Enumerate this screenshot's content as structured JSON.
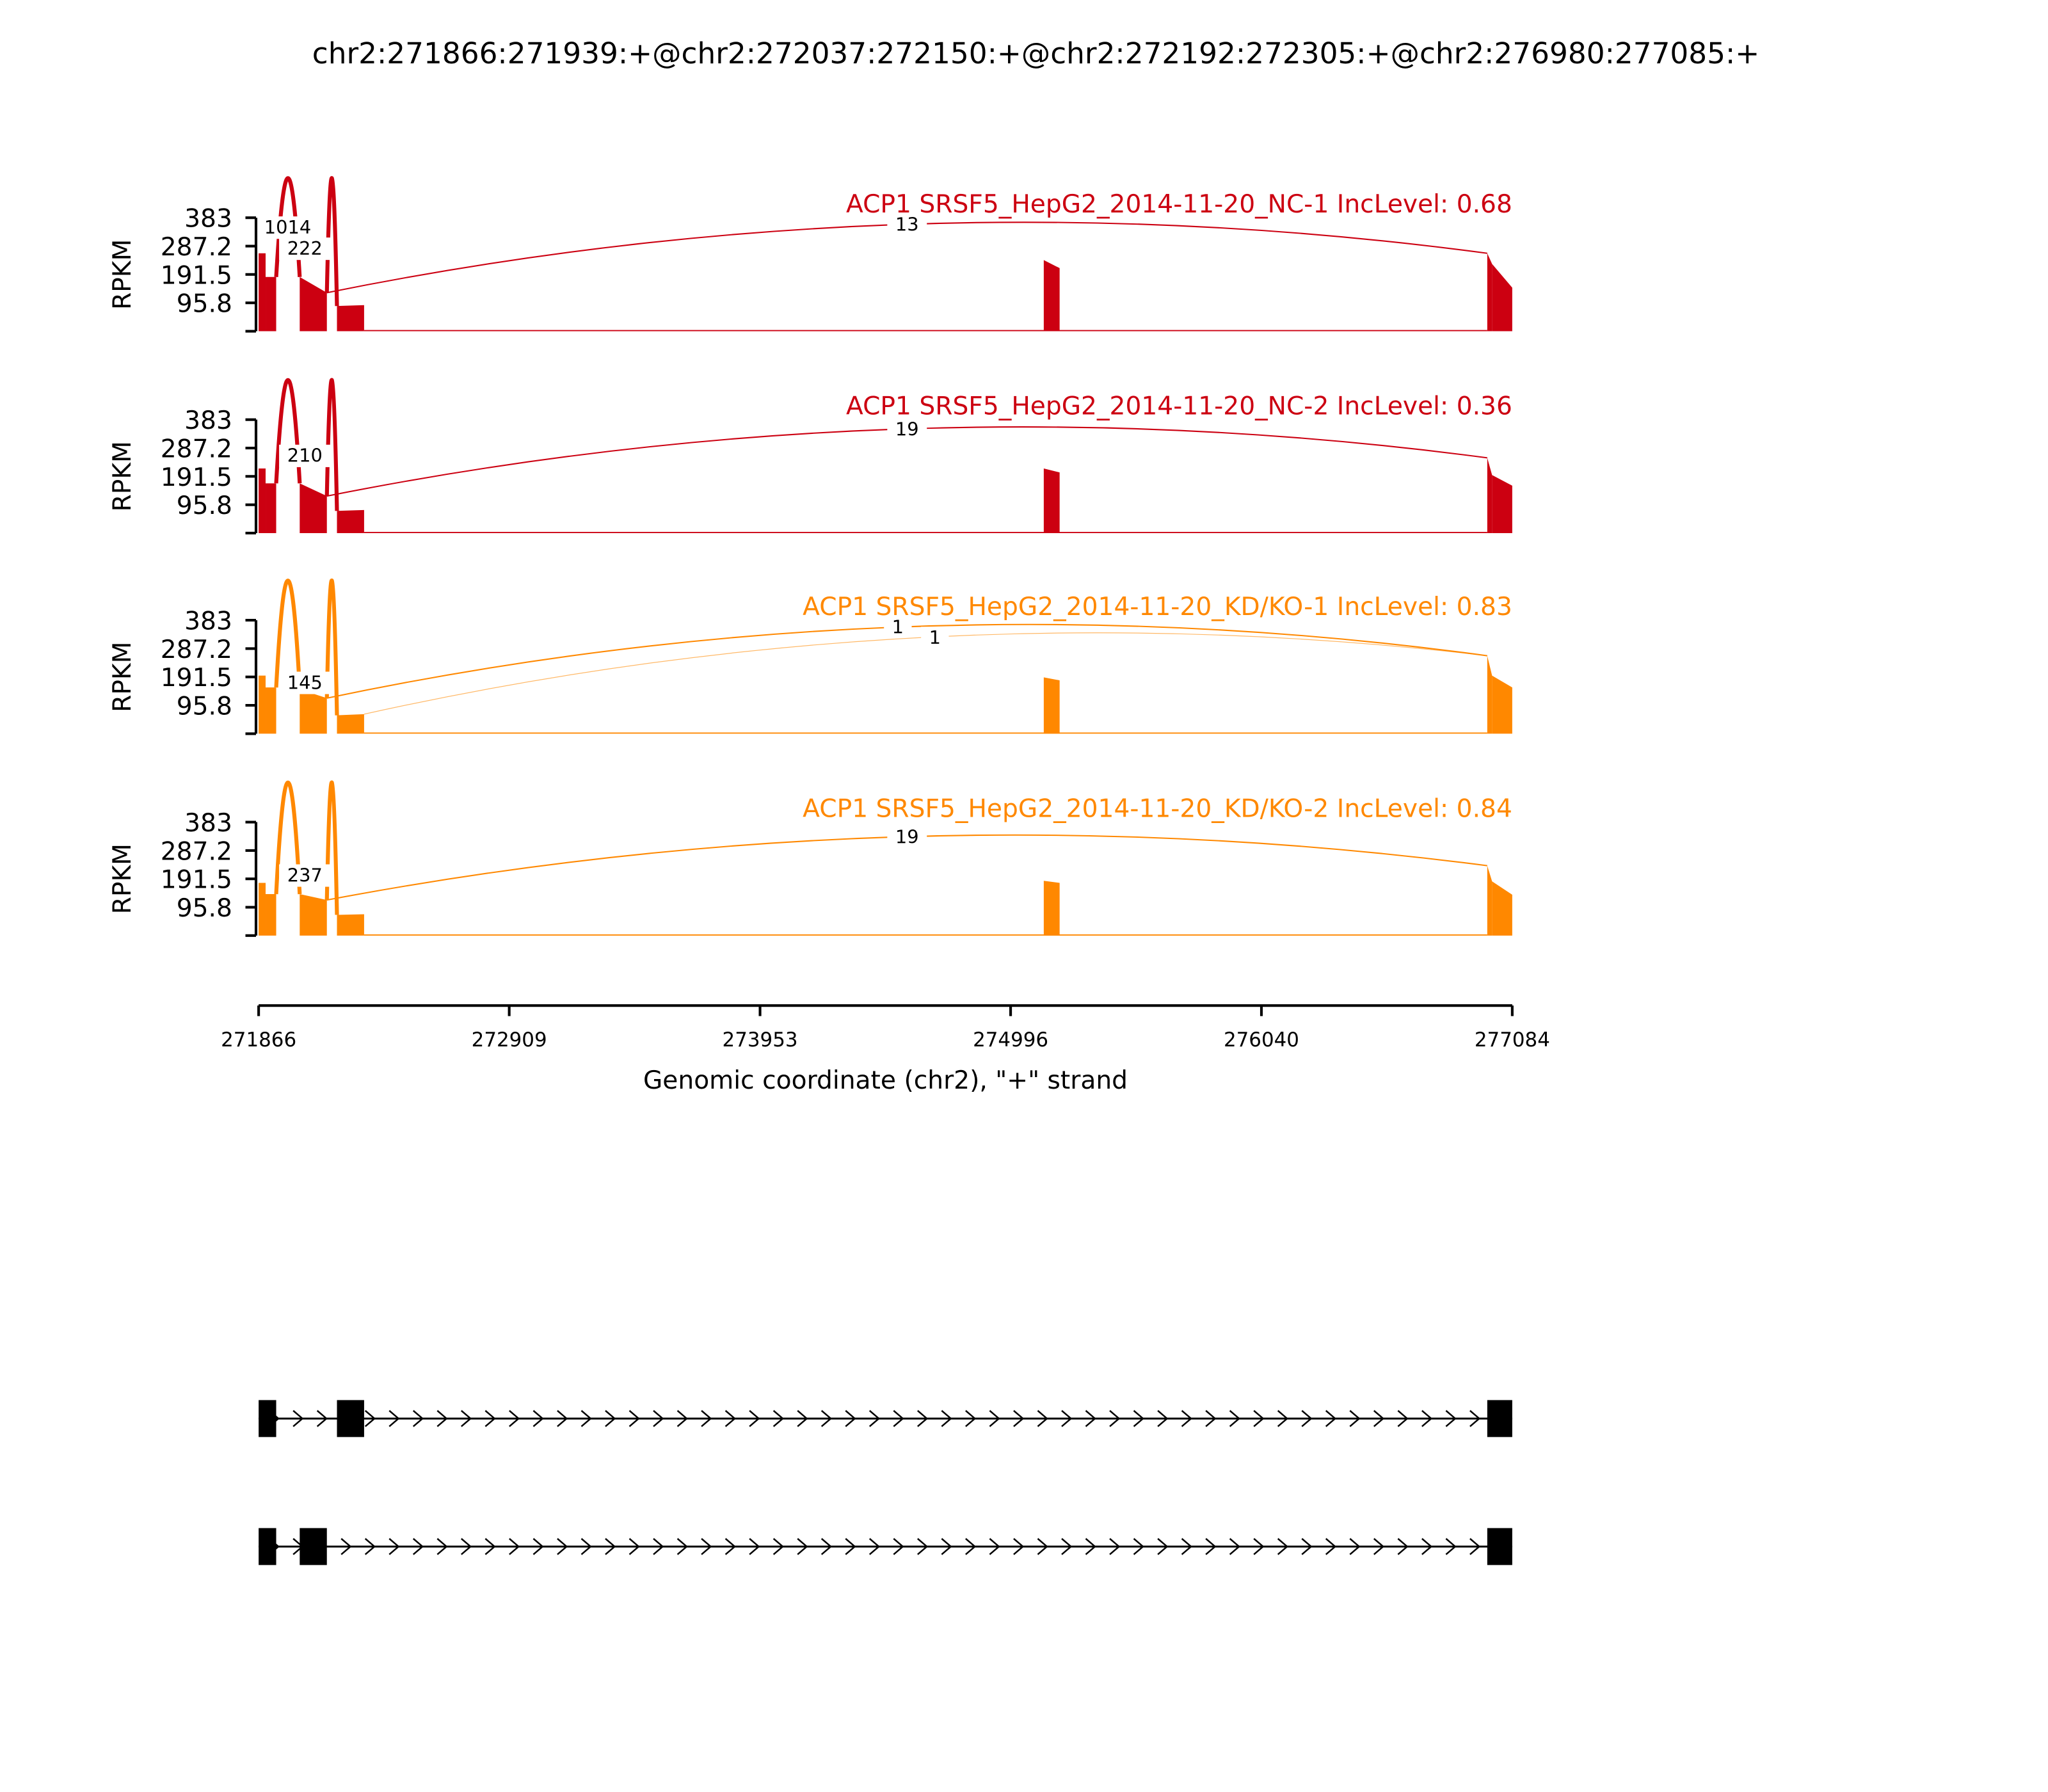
{
  "chart_data": {
    "type": "area",
    "title": "chr2:271866:271939:+@chr2:272037:272150:+@chr2:272192:272305:+@chr2:276980:277085:+",
    "xlabel": "Genomic coordinate (chr2), \"+\" strand",
    "ylabel": "RPKM",
    "xlim": [
      271866,
      277084
    ],
    "ylim": [
      0,
      383
    ],
    "xticks": [
      "271866",
      "272909",
      "273953",
      "274996",
      "276040",
      "277084"
    ],
    "yticks": [
      "383",
      "287.2",
      "191.5",
      "95.8"
    ],
    "series": [
      {
        "name": "ACP1 SRSF5_HepG2_2014-11-20_NC-1 IncLevel: 0.68",
        "color": "#CC0011",
        "coverage": [
          [
            271866,
            271895,
            263,
            263
          ],
          [
            271895,
            271939,
            183,
            183
          ],
          [
            272037,
            272150,
            183,
            130
          ],
          [
            272192,
            272305,
            85,
            88
          ],
          [
            272305,
            276980,
            4,
            4
          ],
          [
            275134,
            275200,
            240,
            213
          ],
          [
            276980,
            277000,
            263,
            227
          ],
          [
            277000,
            277084,
            227,
            147
          ]
        ],
        "junctions": [
          {
            "start": 271939,
            "end": 272037,
            "count": "1014"
          },
          {
            "start": 272150,
            "end": 272192,
            "count": "222"
          },
          {
            "start": 272150,
            "end": 276980,
            "count": "13"
          }
        ]
      },
      {
        "name": "ACP1 SRSF5_HepG2_2014-11-20_NC-2 IncLevel: 0.36",
        "color": "#CC0011",
        "coverage": [
          [
            271866,
            271895,
            218,
            218
          ],
          [
            271895,
            271939,
            168,
            168
          ],
          [
            272037,
            272150,
            168,
            125
          ],
          [
            272192,
            272305,
            75,
            78
          ],
          [
            272305,
            276980,
            4,
            4
          ],
          [
            275134,
            275200,
            218,
            205
          ],
          [
            276980,
            277000,
            254,
            196
          ],
          [
            277000,
            277084,
            196,
            160
          ]
        ],
        "junctions": [
          {
            "start": 271939,
            "end": 272037,
            "count": null
          },
          {
            "start": 272150,
            "end": 272192,
            "count": "210"
          },
          {
            "start": 272150,
            "end": 276980,
            "count": "19"
          }
        ]
      },
      {
        "name": "ACP1 SRSF5_HepG2_2014-11-20_KD/KO-1 IncLevel: 0.83",
        "color": "#FF8800",
        "coverage": [
          [
            271866,
            271895,
            196,
            196
          ],
          [
            271895,
            271939,
            156,
            156
          ],
          [
            272037,
            272150,
            150,
            120
          ],
          [
            272192,
            272305,
            62,
            66
          ],
          [
            272305,
            276980,
            4,
            4
          ],
          [
            275134,
            275200,
            190,
            180
          ],
          [
            276980,
            277000,
            263,
            196
          ],
          [
            277000,
            277084,
            196,
            156
          ]
        ],
        "junctions": [
          {
            "start": 271939,
            "end": 272037,
            "count": null
          },
          {
            "start": 272150,
            "end": 272192,
            "count": "145"
          },
          {
            "start": 272150,
            "end": 276980,
            "count": "1"
          },
          {
            "start": 272305,
            "end": 276980,
            "count": "1"
          }
        ]
      },
      {
        "name": "ACP1 SRSF5_HepG2_2014-11-20_KD/KO-2 IncLevel: 0.84",
        "color": "#FF8800",
        "coverage": [
          [
            271866,
            271895,
            178,
            178
          ],
          [
            271895,
            271939,
            140,
            140
          ],
          [
            272037,
            272150,
            140,
            120
          ],
          [
            272192,
            272305,
            70,
            72
          ],
          [
            272305,
            276980,
            4,
            4
          ],
          [
            275134,
            275200,
            185,
            178
          ],
          [
            276980,
            277000,
            236,
            183
          ],
          [
            277000,
            277084,
            183,
            138
          ]
        ],
        "junctions": [
          {
            "start": 271939,
            "end": 272037,
            "count": null
          },
          {
            "start": 272150,
            "end": 272192,
            "count": "237"
          },
          {
            "start": 272150,
            "end": 276980,
            "count": "19"
          }
        ]
      }
    ],
    "transcripts": [
      {
        "exons": [
          [
            271866,
            271939
          ],
          [
            272192,
            272305
          ],
          [
            276980,
            277084
          ]
        ]
      },
      {
        "exons": [
          [
            271866,
            271939
          ],
          [
            272037,
            272150
          ],
          [
            276980,
            277084
          ]
        ]
      }
    ]
  }
}
